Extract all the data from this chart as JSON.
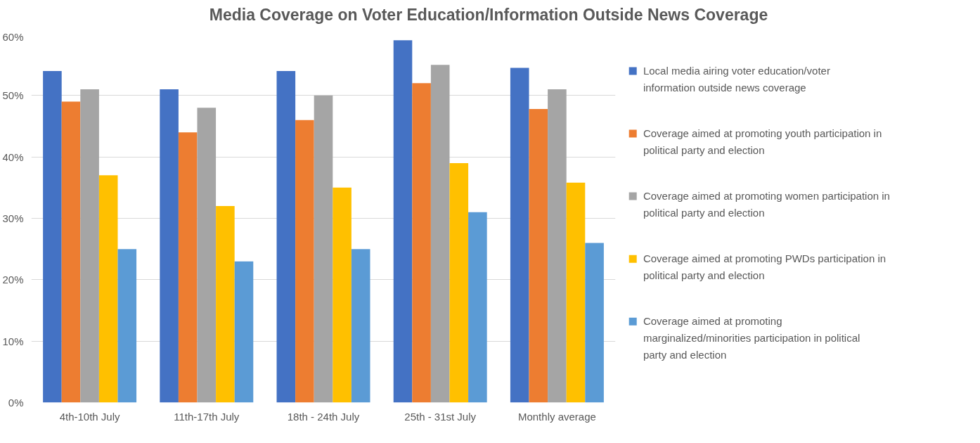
{
  "chart_data": {
    "type": "bar",
    "title": "Media Coverage on Voter Education/Information Outside News Coverage",
    "categories": [
      "4th-10th July",
      "11th-17th July",
      "18th - 24th July",
      "25th - 31st July",
      "Monthly average"
    ],
    "series": [
      {
        "name": "Local media airing voter education/voter information outside news coverage",
        "color": "#4472c4",
        "values": [
          54,
          51,
          54,
          59,
          54.5
        ]
      },
      {
        "name": "Coverage aimed at promoting youth participation in political party and election",
        "color": "#ed7d31",
        "values": [
          49,
          44,
          46,
          52,
          47.8
        ]
      },
      {
        "name": "Coverage aimed at promoting women participation in political party and election",
        "color": "#a5a5a5",
        "values": [
          51,
          48,
          50,
          55,
          51
        ]
      },
      {
        "name": "Coverage aimed at promoting PWDs participation in political party and election",
        "color": "#ffc000",
        "values": [
          37,
          32,
          35,
          39,
          35.8
        ]
      },
      {
        "name": "Coverage aimed at promoting marginalized/minorities participation in political party and election",
        "color": "#5b9bd5",
        "values": [
          25,
          23,
          25,
          31,
          26
        ]
      }
    ],
    "ylim": [
      0,
      60
    ],
    "yticks": [
      {
        "value": 0,
        "label": "0%"
      },
      {
        "value": 10,
        "label": "10%"
      },
      {
        "value": 20,
        "label": "20%"
      },
      {
        "value": 30,
        "label": "30%"
      },
      {
        "value": 40,
        "label": "40%"
      },
      {
        "value": 50,
        "label": "50%"
      },
      {
        "value": 60,
        "label": "60%"
      }
    ],
    "grid": "y",
    "legend": "right"
  }
}
